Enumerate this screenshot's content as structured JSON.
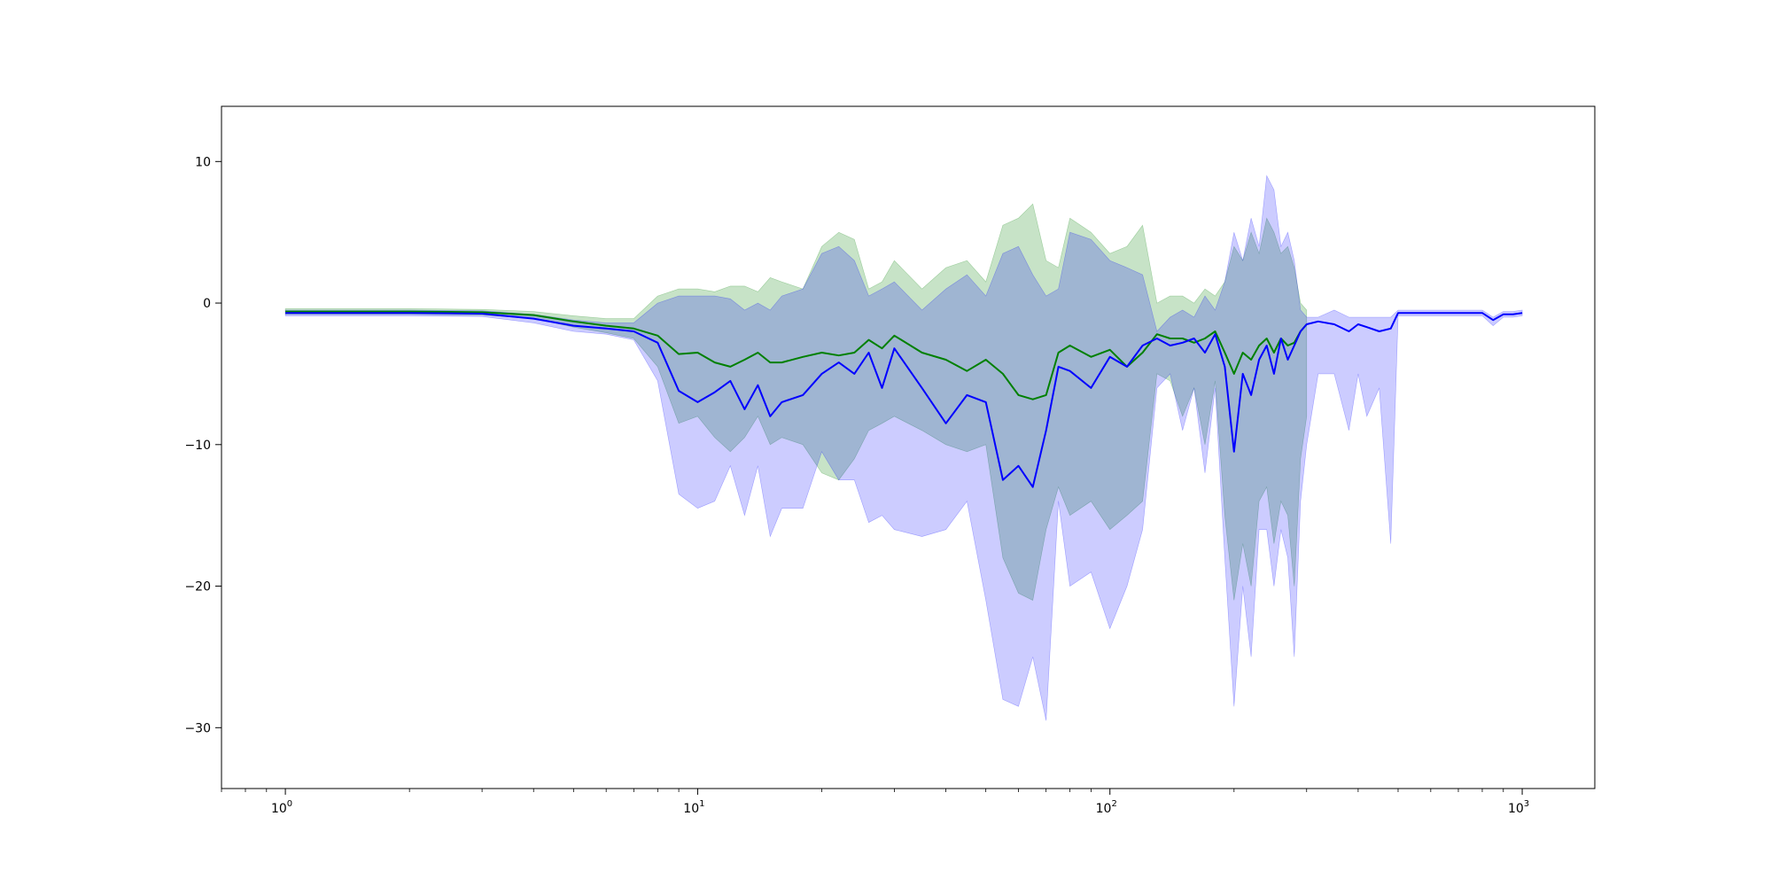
{
  "chart_data": {
    "type": "line",
    "xscale": "log",
    "xlim": [
      0.7,
      1500
    ],
    "ylim": [
      -34.3,
      13.9
    ],
    "grid": false,
    "legend": "none",
    "x_ticks": [
      {
        "value": 1,
        "base": "10",
        "exp": "0"
      },
      {
        "value": 10,
        "base": "10",
        "exp": "1"
      },
      {
        "value": 100,
        "base": "10",
        "exp": "2"
      },
      {
        "value": 1000,
        "base": "10",
        "exp": "3"
      }
    ],
    "y_ticks": [
      {
        "value": 10,
        "label": "10"
      },
      {
        "value": 0,
        "label": "0"
      },
      {
        "value": -10,
        "label": "−10"
      },
      {
        "value": -20,
        "label": "−20"
      },
      {
        "value": -30,
        "label": "−30"
      }
    ],
    "series": [
      {
        "color": "#0000ff",
        "band_color": "#0000ff",
        "band_opacity": 0.2,
        "x": [
          1,
          2,
          3,
          4,
          5,
          6,
          7,
          8,
          9,
          10,
          11,
          12,
          13,
          14,
          15,
          16,
          18,
          20,
          22,
          24,
          26,
          28,
          30,
          35,
          40,
          45,
          50,
          55,
          60,
          65,
          70,
          75,
          80,
          90,
          100,
          110,
          120,
          130,
          140,
          150,
          160,
          170,
          180,
          190,
          200,
          210,
          220,
          230,
          240,
          250,
          260,
          270,
          280,
          290,
          300,
          320,
          350,
          380,
          400,
          420,
          450,
          480,
          500,
          520,
          550,
          600,
          650,
          700,
          750,
          800,
          850,
          900,
          950,
          1000
        ],
        "y": [
          -0.7,
          -0.7,
          -0.75,
          -1.1,
          -1.6,
          -1.8,
          -2.0,
          -2.8,
          -6.2,
          -7.0,
          -6.3,
          -5.5,
          -7.5,
          -5.8,
          -8.0,
          -7.0,
          -6.5,
          -5.0,
          -4.2,
          -5.0,
          -3.5,
          -6.0,
          -3.2,
          -6.0,
          -8.5,
          -6.5,
          -7.0,
          -12.5,
          -11.5,
          -13.0,
          -9.0,
          -4.5,
          -4.8,
          -6.0,
          -3.8,
          -4.5,
          -3.0,
          -2.5,
          -3.0,
          -2.8,
          -2.5,
          -3.5,
          -2.2,
          -4.5,
          -10.5,
          -5.0,
          -6.5,
          -4.0,
          -3.0,
          -5.0,
          -2.5,
          -4.0,
          -3.0,
          -2.0,
          -1.5,
          -1.3,
          -1.5,
          -2.0,
          -1.5,
          -1.7,
          -2.0,
          -1.8,
          -0.7,
          -0.7,
          -0.7,
          -0.7,
          -0.7,
          -0.7,
          -0.7,
          -0.7,
          -1.2,
          -0.8,
          -0.8,
          -0.7
        ],
        "upper": [
          -0.5,
          -0.5,
          -0.55,
          -0.8,
          -1.2,
          -1.4,
          -1.4,
          0.0,
          0.5,
          0.5,
          0.5,
          0.3,
          -0.5,
          0.0,
          -0.5,
          0.5,
          1.0,
          3.5,
          4.0,
          3.0,
          0.5,
          1.0,
          1.5,
          -0.5,
          1.0,
          2.0,
          0.5,
          3.5,
          4.0,
          2.0,
          0.5,
          1.0,
          5.0,
          4.5,
          3.0,
          2.5,
          2.0,
          -2.0,
          -1.0,
          -0.5,
          -1.0,
          0.5,
          -0.5,
          1.5,
          5.0,
          3.0,
          6.0,
          4.0,
          9.0,
          8.0,
          4.0,
          5.0,
          3.0,
          -0.5,
          -1.0,
          -1.0,
          -0.5,
          -1.0,
          -1.0,
          -1.0,
          -1.0,
          -1.0,
          -0.5,
          -0.5,
          -0.5,
          -0.5,
          -0.5,
          -0.5,
          -0.5,
          -0.5,
          -1.0,
          -0.6,
          -0.6,
          -0.5
        ],
        "lower": [
          -0.9,
          -0.9,
          -0.95,
          -1.4,
          -2.0,
          -2.2,
          -2.6,
          -5.5,
          -13.5,
          -14.5,
          -14.0,
          -11.5,
          -15.0,
          -11.5,
          -16.5,
          -14.5,
          -14.5,
          -10.5,
          -12.5,
          -12.5,
          -15.5,
          -15.0,
          -16.0,
          -16.5,
          -16.0,
          -14.0,
          -21.0,
          -28.0,
          -28.5,
          -25.0,
          -29.5,
          -14.0,
          -20.0,
          -19.0,
          -23.0,
          -20.0,
          -16.0,
          -6.0,
          -5.0,
          -9.0,
          -6.0,
          -12.0,
          -6.0,
          -18.0,
          -28.5,
          -20.0,
          -25.0,
          -16.0,
          -16.0,
          -20.0,
          -16.0,
          -18.0,
          -25.0,
          -14.0,
          -10.0,
          -5.0,
          -5.0,
          -9.0,
          -5.0,
          -8.0,
          -6.0,
          -17.0,
          -0.9,
          -0.9,
          -0.9,
          -0.9,
          -0.9,
          -0.9,
          -0.9,
          -0.9,
          -1.6,
          -1.0,
          -1.0,
          -0.9
        ]
      },
      {
        "color": "#008000",
        "band_color": "#008000",
        "band_opacity": 0.22,
        "x": [
          1,
          2,
          3,
          4,
          5,
          6,
          7,
          8,
          9,
          10,
          11,
          12,
          13,
          14,
          15,
          16,
          18,
          20,
          22,
          24,
          26,
          28,
          30,
          35,
          40,
          45,
          50,
          55,
          60,
          65,
          70,
          75,
          80,
          90,
          100,
          110,
          120,
          130,
          140,
          150,
          160,
          170,
          180,
          190,
          200,
          210,
          220,
          230,
          240,
          250,
          260,
          270,
          280,
          290,
          300
        ],
        "y": [
          -0.6,
          -0.6,
          -0.65,
          -0.85,
          -1.3,
          -1.6,
          -1.8,
          -2.3,
          -3.6,
          -3.5,
          -4.2,
          -4.5,
          -4.0,
          -3.5,
          -4.2,
          -4.2,
          -3.8,
          -3.5,
          -3.7,
          -3.5,
          -2.6,
          -3.2,
          -2.3,
          -3.5,
          -4.0,
          -4.8,
          -4.0,
          -5.0,
          -6.5,
          -6.8,
          -6.5,
          -3.5,
          -3.0,
          -3.8,
          -3.3,
          -4.5,
          -3.5,
          -2.2,
          -2.5,
          -2.5,
          -2.8,
          -2.5,
          -2.0,
          -3.5,
          -5.0,
          -3.5,
          -4.0,
          -3.0,
          -2.5,
          -3.5,
          -2.5,
          -3.0,
          -2.8,
          -2.0,
          -1.5
        ],
        "upper": [
          -0.4,
          -0.4,
          -0.45,
          -0.6,
          -0.9,
          -1.1,
          -1.1,
          0.5,
          1.0,
          1.0,
          0.8,
          1.2,
          1.2,
          0.8,
          1.8,
          1.5,
          1.0,
          4.0,
          5.0,
          4.5,
          1.0,
          1.5,
          3.0,
          1.0,
          2.5,
          3.0,
          1.5,
          5.5,
          6.0,
          7.0,
          3.0,
          2.5,
          6.0,
          5.0,
          3.5,
          4.0,
          5.5,
          0.0,
          0.5,
          0.5,
          0.0,
          1.0,
          0.5,
          1.5,
          4.0,
          3.0,
          5.0,
          3.5,
          6.0,
          5.0,
          3.5,
          4.0,
          2.5,
          0.0,
          -0.5
        ],
        "lower": [
          -0.8,
          -0.8,
          -0.85,
          -1.1,
          -1.7,
          -2.1,
          -2.5,
          -4.5,
          -8.5,
          -8.0,
          -9.5,
          -10.5,
          -9.5,
          -8.0,
          -10.0,
          -9.5,
          -10.0,
          -12.0,
          -12.5,
          -11.0,
          -9.0,
          -8.5,
          -8.0,
          -9.0,
          -10.0,
          -10.5,
          -10.0,
          -18.0,
          -20.5,
          -21.0,
          -16.0,
          -13.0,
          -15.0,
          -14.0,
          -16.0,
          -15.0,
          -14.0,
          -5.0,
          -5.5,
          -8.0,
          -6.0,
          -10.0,
          -5.5,
          -15.0,
          -21.0,
          -17.0,
          -20.0,
          -14.0,
          -13.0,
          -17.0,
          -14.0,
          -15.0,
          -20.0,
          -11.0,
          -8.0
        ]
      }
    ]
  }
}
